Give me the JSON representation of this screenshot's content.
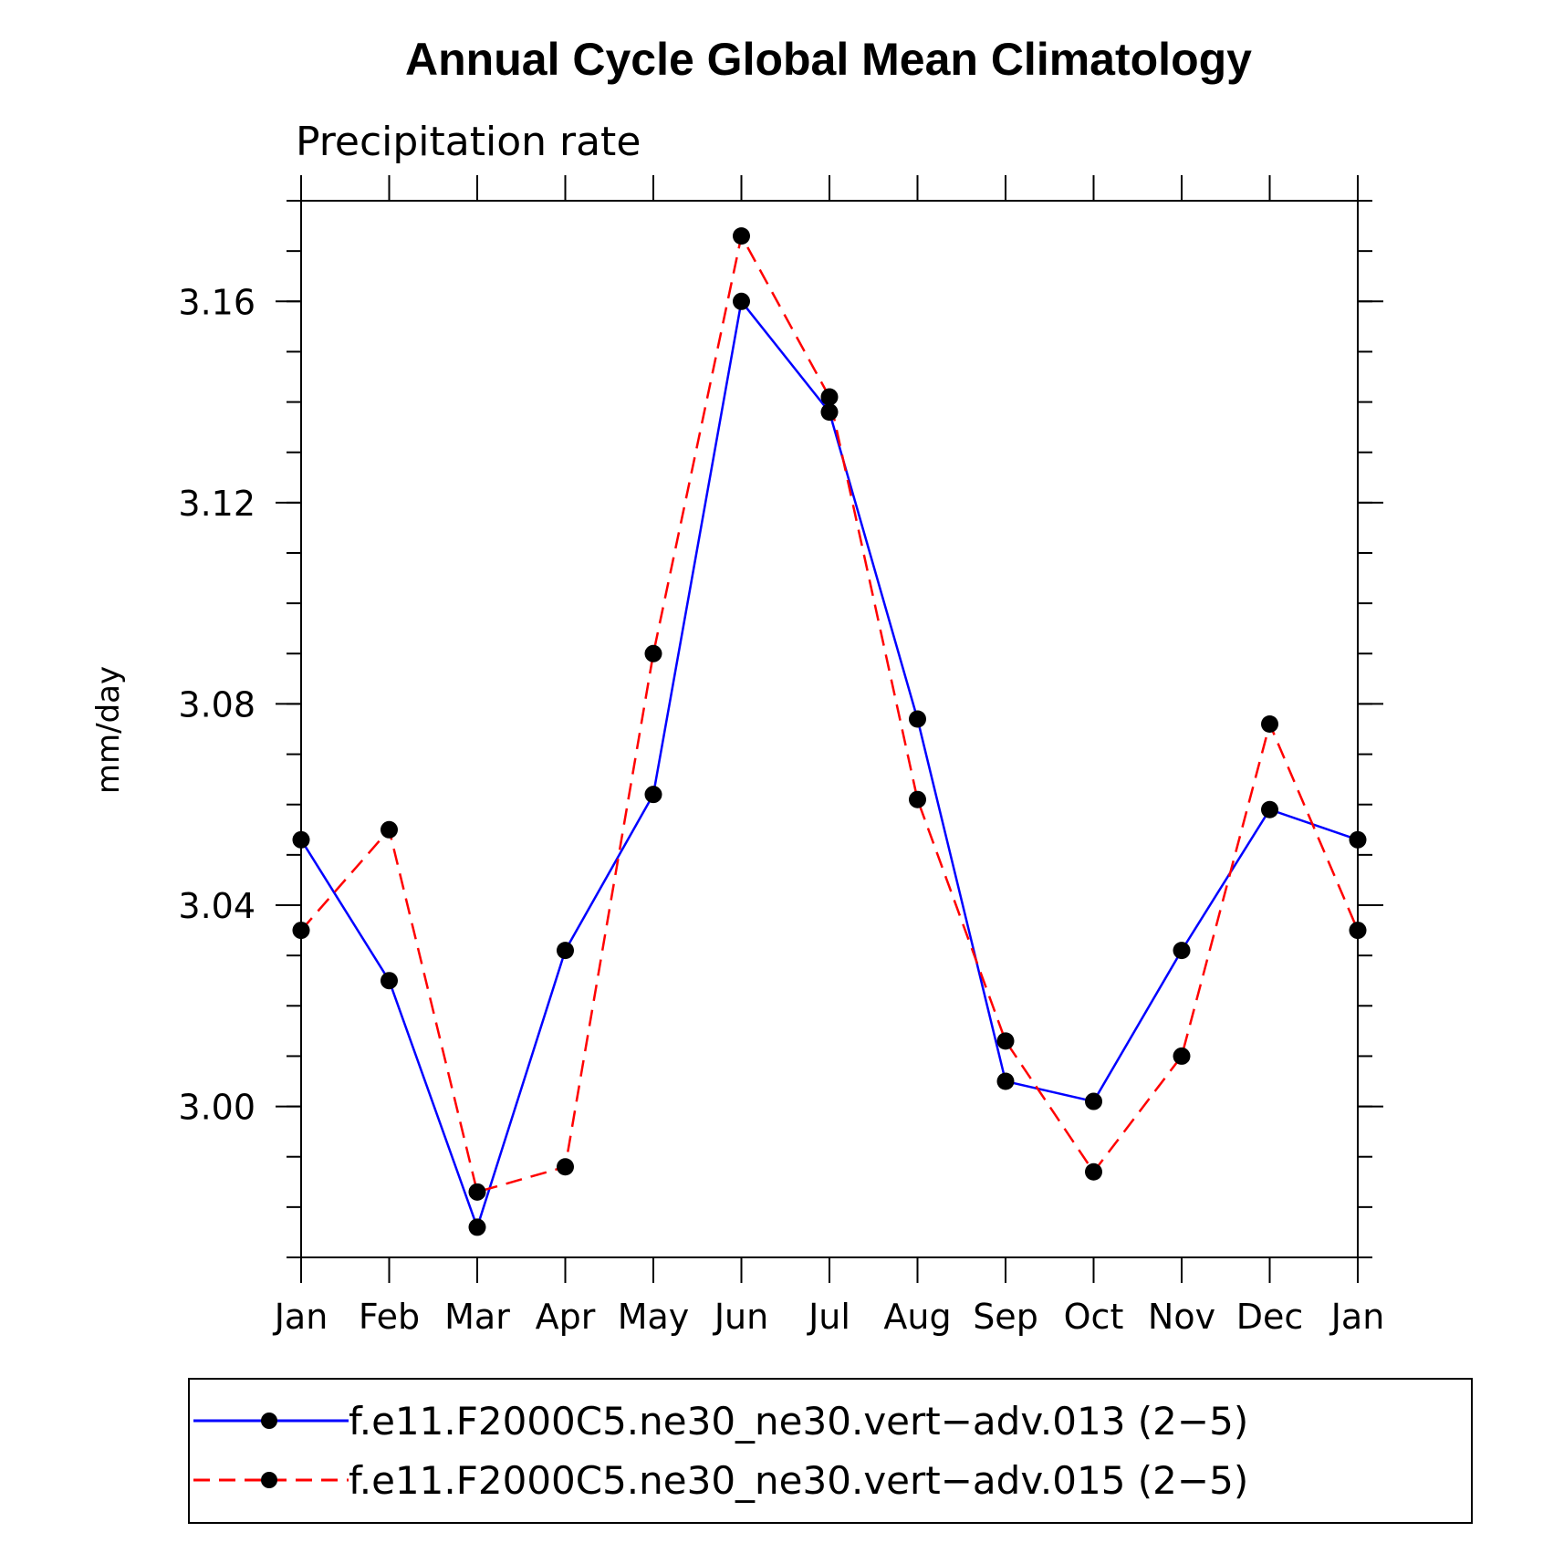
{
  "chart_data": {
    "type": "line",
    "title": "Annual Cycle Global Mean Climatology",
    "subtitle": "Precipitation rate",
    "ylabel": "mm/day",
    "xlabel": "",
    "categories": [
      "Jan",
      "Feb",
      "Mar",
      "Apr",
      "May",
      "Jun",
      "Jul",
      "Aug",
      "Sep",
      "Oct",
      "Nov",
      "Dec",
      "Jan"
    ],
    "ylim": [
      2.97,
      3.18
    ],
    "yticks": [
      "3.00",
      "3.04",
      "3.08",
      "3.12",
      "3.16"
    ],
    "ytick_values": [
      3.0,
      3.04,
      3.08,
      3.12,
      3.16
    ],
    "series": [
      {
        "name": "f.e11.F2000C5.ne30_ne30.vert−adv.013 (2−5)",
        "color": "#0000ff",
        "dash": "solid",
        "values": [
          3.053,
          3.025,
          2.976,
          3.031,
          3.062,
          3.16,
          3.138,
          3.077,
          3.005,
          3.001,
          3.031,
          3.059,
          3.053
        ]
      },
      {
        "name": "f.e11.F2000C5.ne30_ne30.vert−adv.015 (2−5)",
        "color": "#ff0000",
        "dash": "dashed",
        "values": [
          3.035,
          3.055,
          2.983,
          2.988,
          3.09,
          3.173,
          3.141,
          3.061,
          3.013,
          2.987,
          3.01,
          3.076,
          3.035
        ]
      }
    ],
    "marker": "filled-circle",
    "marker_color": "#000000",
    "grid": false,
    "legend": "bottom"
  }
}
